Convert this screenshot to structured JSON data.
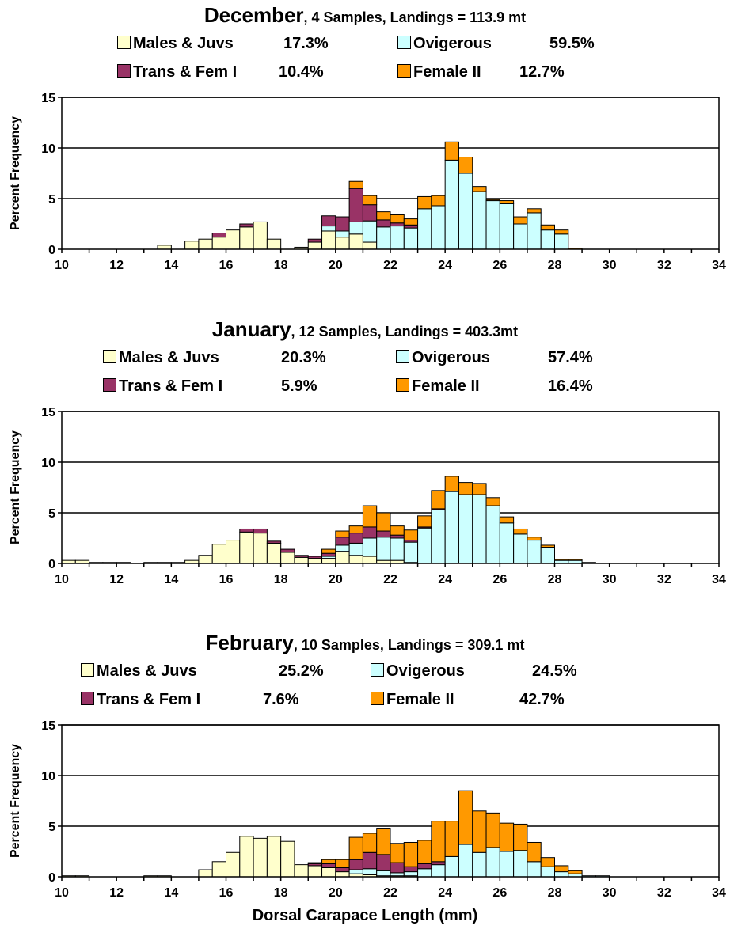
{
  "x_axis_label": "Dorsal Carapace Length (mm)",
  "series_colors": {
    "Males & Juvs": "#FFFFCC",
    "Ovigerous": "#CCFFFF",
    "Trans & Fem I": "#993366",
    "Female II": "#FF9900"
  },
  "chart_data": [
    {
      "type": "bar",
      "stacked": true,
      "title_month": "December",
      "title_rest": ", 4 Samples, Landings = 113.9 mt",
      "legend": [
        {
          "name": "Males & Juvs",
          "pct": "17.3%"
        },
        {
          "name": "Ovigerous",
          "pct": "59.5%"
        },
        {
          "name": "Trans & Fem I",
          "pct": "10.4%"
        },
        {
          "name": "Female II",
          "pct": "12.7%"
        }
      ],
      "ylabel": "Percent Frequency",
      "ylim": [
        0,
        15
      ],
      "yticks": [
        0,
        5,
        10,
        15
      ],
      "xlim": [
        10,
        34
      ],
      "xticks": [
        10,
        12,
        14,
        16,
        18,
        20,
        22,
        24,
        26,
        28,
        30,
        32,
        34
      ],
      "bin_width": 0.5,
      "x": [
        13.5,
        14.5,
        15.0,
        15.5,
        16.0,
        16.5,
        17.0,
        17.5,
        18.5,
        19.0,
        19.5,
        20.0,
        20.5,
        21.0,
        21.5,
        22.0,
        22.5,
        23.0,
        23.5,
        24.0,
        24.5,
        25.0,
        25.5,
        26.0,
        26.5,
        27.0,
        27.5,
        28.0,
        28.5
      ],
      "series": [
        {
          "name": "Males & Juvs",
          "values": [
            0.4,
            0.8,
            1.0,
            1.2,
            1.9,
            2.2,
            2.7,
            1.0,
            0.2,
            0.7,
            1.8,
            1.2,
            1.5,
            0.7,
            0,
            0,
            0,
            0,
            0,
            0,
            0,
            0,
            0,
            0,
            0,
            0,
            0,
            0,
            0
          ]
        },
        {
          "name": "Ovigerous",
          "values": [
            0,
            0,
            0,
            0,
            0,
            0,
            0,
            0,
            0,
            0,
            0.5,
            0.6,
            1.2,
            2.1,
            2.2,
            2.3,
            2.1,
            4.0,
            4.3,
            8.8,
            7.5,
            5.7,
            4.8,
            4.5,
            2.5,
            3.6,
            1.9,
            1.5,
            0
          ]
        },
        {
          "name": "Trans & Fem I",
          "values": [
            0,
            0,
            0,
            0.4,
            0,
            0.3,
            0,
            0,
            0,
            0.3,
            1.0,
            1.4,
            3.3,
            1.6,
            0.7,
            0.3,
            0.3,
            0,
            0,
            0,
            0,
            0,
            0,
            0,
            0,
            0,
            0,
            0,
            0
          ]
        },
        {
          "name": "Female II",
          "values": [
            0,
            0,
            0,
            0,
            0,
            0,
            0,
            0,
            0,
            0,
            0,
            0,
            0.7,
            0.9,
            0.8,
            0.8,
            0.6,
            1.2,
            1.0,
            1.8,
            1.6,
            0.5,
            0.1,
            0.3,
            0.7,
            0.4,
            0.5,
            0.4,
            0.1
          ]
        }
      ]
    },
    {
      "type": "bar",
      "stacked": true,
      "title_month": "January",
      "title_rest": ", 12 Samples, Landings = 403.3mt",
      "legend": [
        {
          "name": "Males & Juvs",
          "pct": "20.3%"
        },
        {
          "name": "Ovigerous",
          "pct": "57.4%"
        },
        {
          "name": "Trans & Fem I",
          "pct": "5.9%"
        },
        {
          "name": "Female II",
          "pct": "16.4%"
        }
      ],
      "ylabel": "Percent Frequency",
      "ylim": [
        0,
        15
      ],
      "yticks": [
        0,
        5,
        10,
        15
      ],
      "xlim": [
        10,
        34
      ],
      "xticks": [
        10,
        12,
        14,
        16,
        18,
        20,
        22,
        24,
        26,
        28,
        30,
        32,
        34
      ],
      "bin_width": 0.5,
      "x": [
        10.0,
        10.5,
        11.0,
        11.5,
        12.0,
        13.0,
        13.5,
        14.0,
        14.5,
        15.0,
        15.5,
        16.0,
        16.5,
        17.0,
        17.5,
        18.0,
        18.5,
        19.0,
        19.5,
        20.0,
        20.5,
        21.0,
        21.5,
        22.0,
        22.5,
        23.0,
        23.5,
        24.0,
        24.5,
        25.0,
        25.5,
        26.0,
        26.5,
        27.0,
        27.5,
        28.0,
        28.5,
        29.0
      ],
      "series": [
        {
          "name": "Males & Juvs",
          "values": [
            0.3,
            0.3,
            0.1,
            0.1,
            0.1,
            0.1,
            0.1,
            0.1,
            0.3,
            0.8,
            1.9,
            2.3,
            3.1,
            3.0,
            2.0,
            1.1,
            0.6,
            0.5,
            0.5,
            1.2,
            0.8,
            0.7,
            0.3,
            0.3,
            0.1,
            0,
            0,
            0,
            0,
            0,
            0,
            0,
            0,
            0,
            0,
            0,
            0,
            0
          ]
        },
        {
          "name": "Ovigerous",
          "values": [
            0,
            0,
            0,
            0,
            0,
            0,
            0,
            0,
            0,
            0,
            0,
            0,
            0,
            0,
            0,
            0,
            0,
            0,
            0.2,
            0.6,
            1.2,
            1.8,
            2.3,
            2.2,
            2.0,
            3.5,
            5.3,
            7.1,
            6.8,
            6.8,
            5.7,
            4.0,
            2.9,
            2.3,
            1.6,
            0.3,
            0.3,
            0
          ]
        },
        {
          "name": "Trans & Fem I",
          "values": [
            0,
            0,
            0,
            0,
            0,
            0,
            0,
            0,
            0,
            0,
            0,
            0,
            0.3,
            0.4,
            0.2,
            0.3,
            0.2,
            0.2,
            0.3,
            0.8,
            1.0,
            1.1,
            0.6,
            0.3,
            0.2,
            0.1,
            0.1,
            0,
            0,
            0,
            0,
            0,
            0,
            0,
            0,
            0,
            0,
            0
          ]
        },
        {
          "name": "Female II",
          "values": [
            0,
            0,
            0,
            0,
            0,
            0,
            0,
            0,
            0,
            0,
            0,
            0,
            0,
            0,
            0,
            0,
            0,
            0,
            0.4,
            0.6,
            0.7,
            2.1,
            1.8,
            0.9,
            1.0,
            1.1,
            1.8,
            1.5,
            1.2,
            1.1,
            0.8,
            0.6,
            0.5,
            0.3,
            0.2,
            0.1,
            0.1,
            0.1
          ]
        }
      ]
    },
    {
      "type": "bar",
      "stacked": true,
      "title_month": "February",
      "title_rest": ", 10 Samples, Landings = 309.1 mt",
      "legend": [
        {
          "name": "Males & Juvs",
          "pct": "25.2%"
        },
        {
          "name": "Ovigerous",
          "pct": "24.5%"
        },
        {
          "name": "Trans & Fem I",
          "pct": "7.6%"
        },
        {
          "name": "Female II",
          "pct": "42.7%"
        }
      ],
      "ylabel": "Percent Frequency",
      "ylim": [
        0,
        15
      ],
      "yticks": [
        0,
        5,
        10,
        15
      ],
      "xlim": [
        10,
        34
      ],
      "xticks": [
        10,
        12,
        14,
        16,
        18,
        20,
        22,
        24,
        26,
        28,
        30,
        32,
        34
      ],
      "bin_width": 0.5,
      "x": [
        10.0,
        10.5,
        13.0,
        13.5,
        15.0,
        15.5,
        16.0,
        16.5,
        17.0,
        17.5,
        18.0,
        18.5,
        19.0,
        19.5,
        20.0,
        20.5,
        21.0,
        21.5,
        22.0,
        22.5,
        23.0,
        23.5,
        24.0,
        24.5,
        25.0,
        25.5,
        26.0,
        26.5,
        27.0,
        27.5,
        28.0,
        28.5,
        29.0,
        29.5
      ],
      "series": [
        {
          "name": "Males & Juvs",
          "values": [
            0.1,
            0.1,
            0.1,
            0.1,
            0.7,
            1.5,
            2.4,
            4.0,
            3.8,
            4.0,
            3.5,
            1.2,
            1.1,
            0.9,
            0.5,
            0.3,
            0.2,
            0.1,
            0.1,
            0.1,
            0,
            0,
            0,
            0,
            0,
            0,
            0,
            0,
            0,
            0,
            0,
            0,
            0,
            0
          ]
        },
        {
          "name": "Ovigerous",
          "values": [
            0,
            0,
            0,
            0,
            0,
            0,
            0,
            0,
            0,
            0,
            0,
            0,
            0,
            0,
            0,
            0.4,
            0.6,
            0.5,
            0.3,
            0.4,
            0.8,
            1.2,
            2.0,
            3.2,
            2.4,
            2.9,
            2.5,
            2.6,
            1.5,
            1.0,
            0.5,
            0.3,
            0.1,
            0.1
          ]
        },
        {
          "name": "Trans & Fem I",
          "values": [
            0,
            0,
            0,
            0,
            0,
            0,
            0,
            0,
            0,
            0,
            0,
            0,
            0.2,
            0.4,
            0.4,
            1.0,
            1.6,
            1.6,
            1.0,
            0.5,
            0.5,
            0.3,
            0,
            0,
            0,
            0,
            0,
            0,
            0,
            0,
            0,
            0,
            0,
            0
          ]
        },
        {
          "name": "Female II",
          "values": [
            0,
            0,
            0,
            0,
            0,
            0,
            0,
            0,
            0,
            0,
            0,
            0,
            0.1,
            0.4,
            0.8,
            2.2,
            1.9,
            2.6,
            1.9,
            2.4,
            2.3,
            4.0,
            3.5,
            5.3,
            4.1,
            3.4,
            2.8,
            2.6,
            1.9,
            0.9,
            0.6,
            0.3,
            0,
            0
          ]
        }
      ]
    }
  ]
}
